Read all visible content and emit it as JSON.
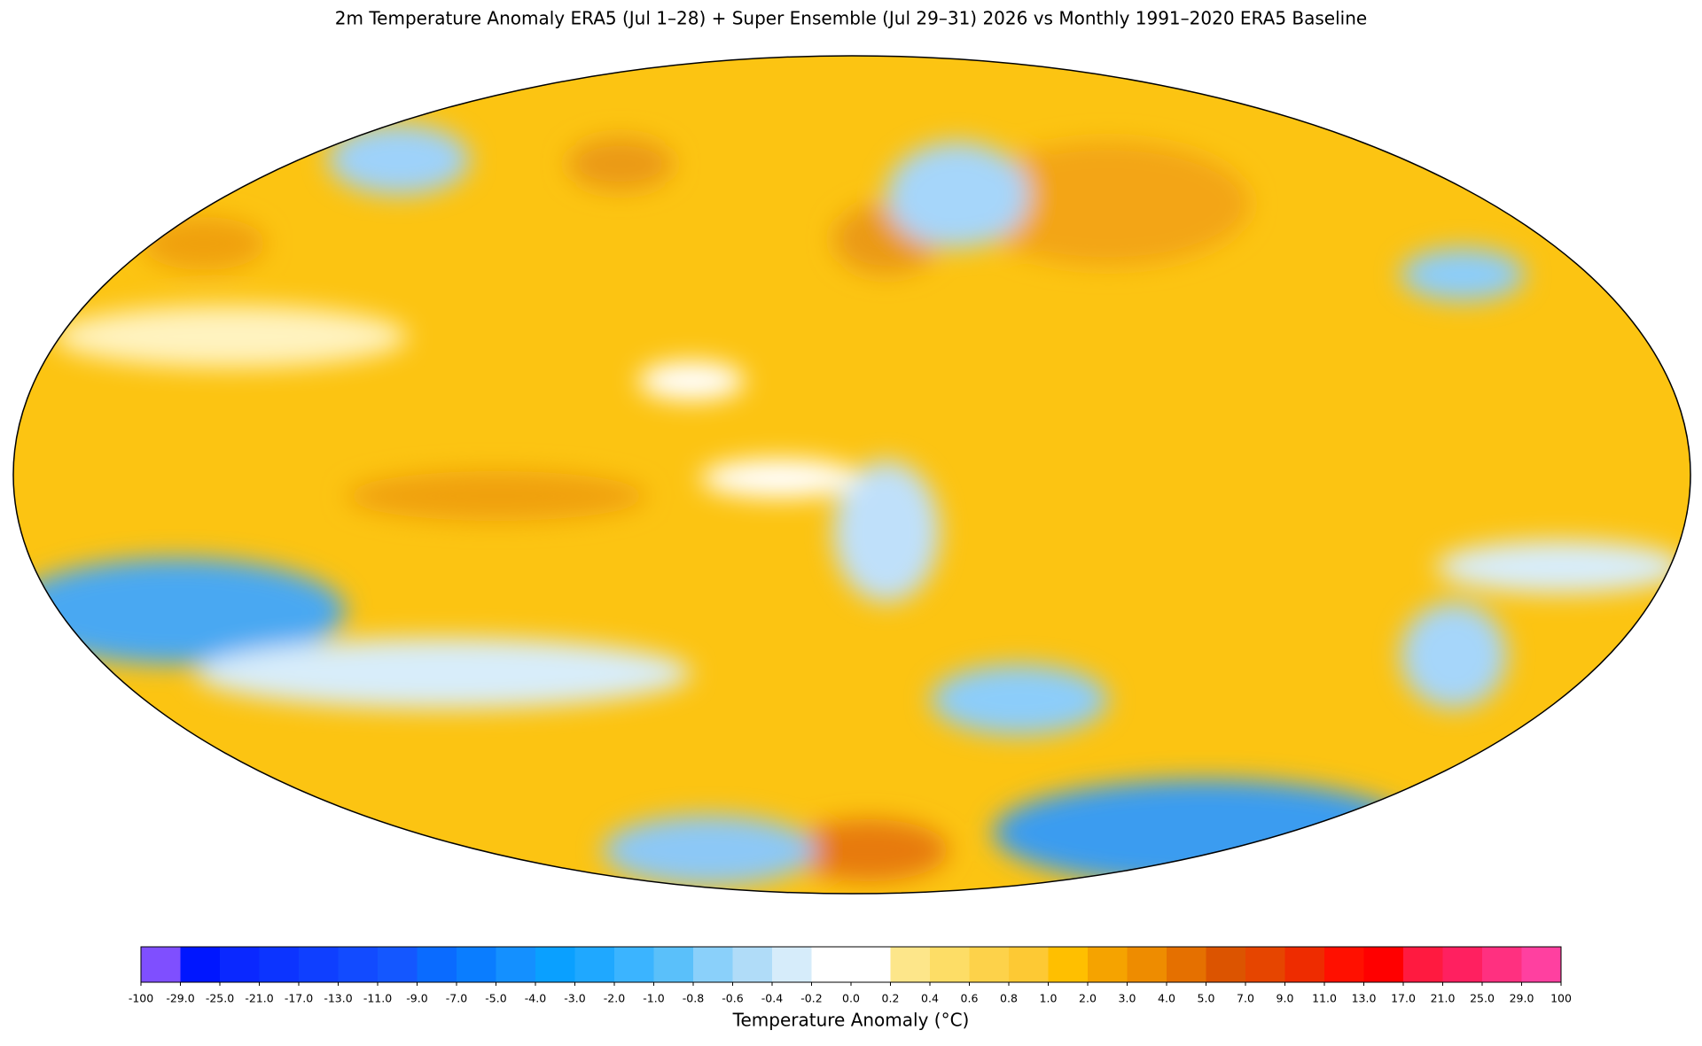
{
  "title": "2m Temperature Anomaly  ERA5 (Jul 1–28) + Super Ensemble (Jul 29–31) 2026  vs Monthly 1991–2020 ERA5 Baseline",
  "colorbar": {
    "label": "Temperature Anomaly (°C)",
    "ticks": [
      -100,
      {
        "value": -29,
        "label": "-29.0"
      },
      {
        "value": -25,
        "label": "-25.0"
      },
      {
        "value": -21,
        "label": "-21.0"
      },
      {
        "value": -17,
        "label": "-17.0"
      },
      {
        "value": -13,
        "label": "-13.0"
      },
      {
        "value": -11,
        "label": "-11.0"
      },
      {
        "value": -9,
        "label": "-9.0"
      },
      {
        "value": -7,
        "label": "-7.0"
      },
      {
        "value": -5,
        "label": "-5.0"
      },
      {
        "value": -4,
        "label": "-4.0"
      },
      {
        "value": -3,
        "label": "-3.0"
      },
      {
        "value": -2,
        "label": "-2.0"
      },
      {
        "value": -1,
        "label": "-1.0"
      },
      -0.8,
      -0.6,
      -0.4,
      -0.2,
      {
        "value": 0,
        "label": "0.0"
      },
      0.2,
      0.4,
      0.6,
      0.8,
      {
        "value": 1,
        "label": "1.0"
      },
      {
        "value": 2,
        "label": "2.0"
      },
      {
        "value": 3,
        "label": "3.0"
      },
      {
        "value": 4,
        "label": "4.0"
      },
      {
        "value": 5,
        "label": "5.0"
      },
      {
        "value": 7,
        "label": "7.0"
      },
      {
        "value": 9,
        "label": "9.0"
      },
      {
        "value": 11,
        "label": "11.0"
      },
      {
        "value": 13,
        "label": "13.0"
      },
      {
        "value": 17,
        "label": "17.0"
      },
      {
        "value": 21,
        "label": "21.0"
      },
      {
        "value": 25,
        "label": "25.0"
      },
      {
        "value": 29,
        "label": "29.0"
      },
      100
    ],
    "colors": [
      "#7f4fff",
      "#0016ff",
      "#0a28ff",
      "#0c34ff",
      "#0f3fff",
      "#124bff",
      "#1457ff",
      "#0a6bff",
      "#0a7dff",
      "#1490ff",
      "#0aa0ff",
      "#1fa8ff",
      "#3bb4ff",
      "#5ac0fa",
      "#8ad0fa",
      "#b0dcf8",
      "#d6ecfa",
      "#ffffff",
      "#ffffff",
      "#fde68a",
      "#fddd66",
      "#fdd24a",
      "#fdc934",
      "#ffbf00",
      "#f5a300",
      "#ee8c00",
      "#e57000",
      "#dc5400",
      "#e64500",
      "#ee2c00",
      "#ff1000",
      "#ff0000",
      "#ff1a40",
      "#ff2060",
      "#ff3080",
      "#ff40a0"
    ]
  }
}
